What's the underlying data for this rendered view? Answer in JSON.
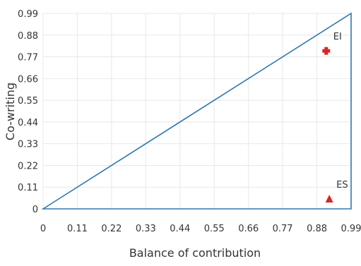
{
  "chart_data": {
    "type": "scatter",
    "title": "",
    "xlabel": "Balance of contribution",
    "ylabel": "Co-writing",
    "xlim": [
      0,
      0.99
    ],
    "ylim": [
      0,
      0.99
    ],
    "x_ticks": [
      "0",
      "0.11",
      "0.22",
      "0.33",
      "0.44",
      "0.55",
      "0.66",
      "0.77",
      "0.88",
      "0.99"
    ],
    "y_ticks": [
      "0",
      "0.11",
      "0.22",
      "0.33",
      "0.44",
      "0.55",
      "0.66",
      "0.77",
      "0.88",
      "0.99"
    ],
    "grid": true,
    "reference_shape": {
      "description": "triangle outline",
      "vertices": [
        [
          0,
          0
        ],
        [
          0.99,
          0.99
        ],
        [
          0.99,
          0
        ]
      ],
      "color": "#2e78b0"
    },
    "points": [
      {
        "label": "EI",
        "x": 0.91,
        "y": 0.8,
        "marker": "cross",
        "color": "#d62728"
      },
      {
        "label": "ES",
        "x": 0.92,
        "y": 0.05,
        "marker": "triangle",
        "color": "#d62728"
      }
    ]
  }
}
